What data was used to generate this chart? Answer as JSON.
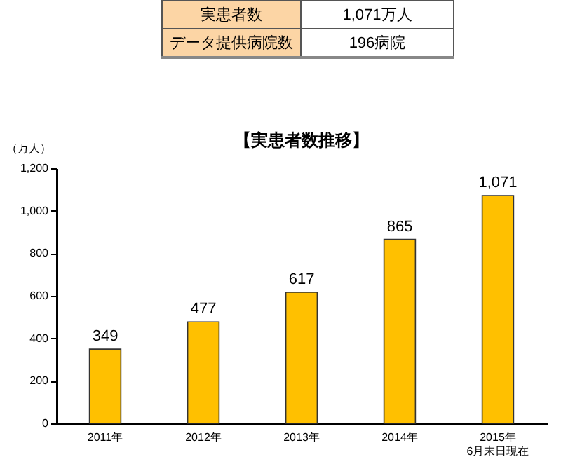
{
  "chart_data": {
    "type": "bar",
    "title": "【実患者数推移】",
    "ylabel": "（万人）",
    "categories": [
      "2011年",
      "2012年",
      "2013年",
      "2014年",
      "2015年\n6月末日現在"
    ],
    "values": [
      349,
      477,
      617,
      865,
      1071
    ],
    "color": "#ffc000",
    "ylim": [
      0,
      1200
    ],
    "yticks": [
      0,
      200,
      400,
      600,
      800,
      {
        "value": 1000,
        "label": "1,000"
      },
      {
        "value": 1200,
        "label": "1,200"
      }
    ],
    "grid": false,
    "data_labels": true,
    "value_labels": [
      "349",
      "477",
      "617",
      "865",
      "1,071"
    ],
    "annotations": [
      "実患者数",
      "1,071万人",
      "データ提供病院数",
      "196病院"
    ]
  }
}
